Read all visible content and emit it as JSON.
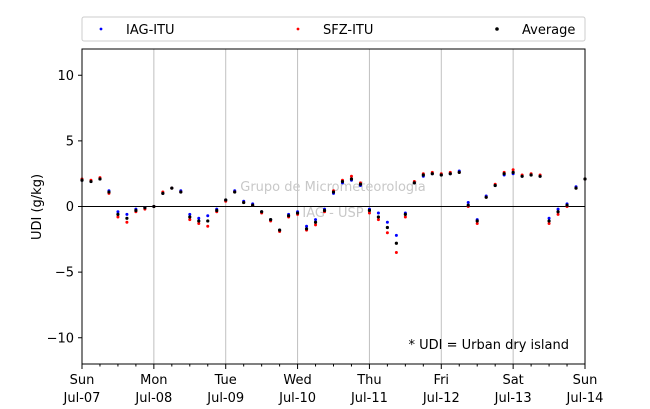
{
  "chart_data": {
    "type": "scatter",
    "title": "",
    "ylabel": "UDI (g/kg)",
    "xlabel": "",
    "ylim": [
      -12,
      12
    ],
    "yticks": [
      -10,
      -5,
      0,
      5,
      10
    ],
    "x_range": [
      "2019-07-07T00:00",
      "2019-07-14T00:00"
    ],
    "x_ticks": [
      {
        "day": "Sun",
        "date": "Jul-07"
      },
      {
        "day": "Mon",
        "date": "Jul-08"
      },
      {
        "day": "Tue",
        "date": "Jul-09"
      },
      {
        "day": "Wed",
        "date": "Jul-10"
      },
      {
        "day": "Thu",
        "date": "Jul-11"
      },
      {
        "day": "Fri",
        "date": "Jul-12"
      },
      {
        "day": "Sat",
        "date": "Jul-13"
      },
      {
        "day": "Sun",
        "date": "Jul-14"
      }
    ],
    "grid": "vertical lines at day boundaries",
    "zero_line": true,
    "legend_position": "top, above plot",
    "annotation": "* UDI = Urban dry island",
    "watermark": [
      "Grupo de Micrometeorologia",
      "IAG - USP"
    ],
    "series": [
      {
        "name": "IAG-ITU",
        "color": "#0000ff",
        "x_hours": [
          0,
          3,
          6,
          9,
          12,
          15,
          18,
          21,
          24,
          27,
          30,
          33,
          36,
          39,
          42,
          45,
          48,
          51,
          54,
          57,
          60,
          63,
          66,
          69,
          72,
          75,
          78,
          81,
          84,
          87,
          90,
          93,
          96,
          99,
          102,
          105,
          108,
          111,
          114,
          117,
          120,
          123,
          126,
          129,
          132,
          135,
          138,
          141,
          144,
          147,
          150,
          153,
          156,
          159,
          162,
          165,
          168
        ],
        "y": [
          2.0,
          1.9,
          2.1,
          1.2,
          -0.4,
          -0.6,
          -0.2,
          -0.1,
          0.0,
          1.0,
          1.4,
          1.2,
          -0.6,
          -0.9,
          -0.7,
          -0.2,
          0.5,
          1.2,
          0.4,
          0.2,
          -0.4,
          -1.0,
          -1.8,
          -0.6,
          -0.4,
          -1.5,
          -1.0,
          -0.2,
          1.0,
          1.8,
          2.0,
          1.6,
          -0.2,
          -0.5,
          -1.2,
          -2.2,
          -0.5,
          1.8,
          2.3,
          2.5,
          2.4,
          2.5,
          2.7,
          0.3,
          -1.0,
          0.8,
          1.6,
          2.4,
          2.5,
          2.3,
          2.4,
          2.3,
          -0.9,
          -0.2,
          0.2,
          1.5,
          2.1
        ]
      },
      {
        "name": "SFZ-ITU",
        "color": "#ff0000",
        "x_hours": [
          0,
          3,
          6,
          9,
          12,
          15,
          18,
          21,
          24,
          27,
          30,
          33,
          36,
          39,
          42,
          45,
          48,
          51,
          54,
          57,
          60,
          63,
          66,
          69,
          72,
          75,
          78,
          81,
          84,
          87,
          90,
          93,
          96,
          99,
          102,
          105,
          108,
          111,
          114,
          117,
          120,
          123,
          126,
          129,
          132,
          135,
          138,
          141,
          144,
          147,
          150,
          153,
          156,
          159,
          162,
          165,
          168
        ],
        "y": [
          2.1,
          2.0,
          2.2,
          1.0,
          -0.8,
          -1.2,
          -0.4,
          -0.2,
          0.0,
          1.1,
          1.4,
          1.1,
          -1.0,
          -1.3,
          -1.5,
          -0.4,
          0.4,
          1.1,
          0.3,
          0.1,
          -0.5,
          -1.1,
          -1.9,
          -0.8,
          -0.6,
          -1.8,
          -1.4,
          -0.4,
          1.2,
          2.0,
          2.3,
          1.8,
          -0.5,
          -1.0,
          -2.0,
          -3.5,
          -0.8,
          1.9,
          2.5,
          2.6,
          2.5,
          2.6,
          2.6,
          0.0,
          -1.3,
          0.7,
          1.7,
          2.6,
          2.8,
          2.4,
          2.5,
          2.4,
          -1.3,
          -0.6,
          0.0,
          1.4,
          2.1
        ]
      },
      {
        "name": "Average",
        "color": "#000000",
        "x_hours": [
          0,
          3,
          6,
          9,
          12,
          15,
          18,
          21,
          24,
          27,
          30,
          33,
          36,
          39,
          42,
          45,
          48,
          51,
          54,
          57,
          60,
          63,
          66,
          69,
          72,
          75,
          78,
          81,
          84,
          87,
          90,
          93,
          96,
          99,
          102,
          105,
          108,
          111,
          114,
          117,
          120,
          123,
          126,
          129,
          132,
          135,
          138,
          141,
          144,
          147,
          150,
          153,
          156,
          159,
          162,
          165,
          168
        ],
        "y": [
          2.0,
          1.9,
          2.1,
          1.1,
          -0.6,
          -0.9,
          -0.3,
          -0.1,
          0.0,
          1.0,
          1.4,
          1.1,
          -0.8,
          -1.1,
          -1.1,
          -0.3,
          0.5,
          1.1,
          0.3,
          0.1,
          -0.4,
          -1.0,
          -1.8,
          -0.7,
          -0.5,
          -1.7,
          -1.2,
          -0.3,
          1.1,
          1.9,
          2.1,
          1.7,
          -0.3,
          -0.8,
          -1.6,
          -2.8,
          -0.6,
          1.8,
          2.4,
          2.5,
          2.4,
          2.5,
          2.6,
          0.1,
          -1.1,
          0.7,
          1.6,
          2.5,
          2.6,
          2.3,
          2.4,
          2.3,
          -1.1,
          -0.4,
          0.1,
          1.4,
          2.1
        ]
      }
    ]
  }
}
